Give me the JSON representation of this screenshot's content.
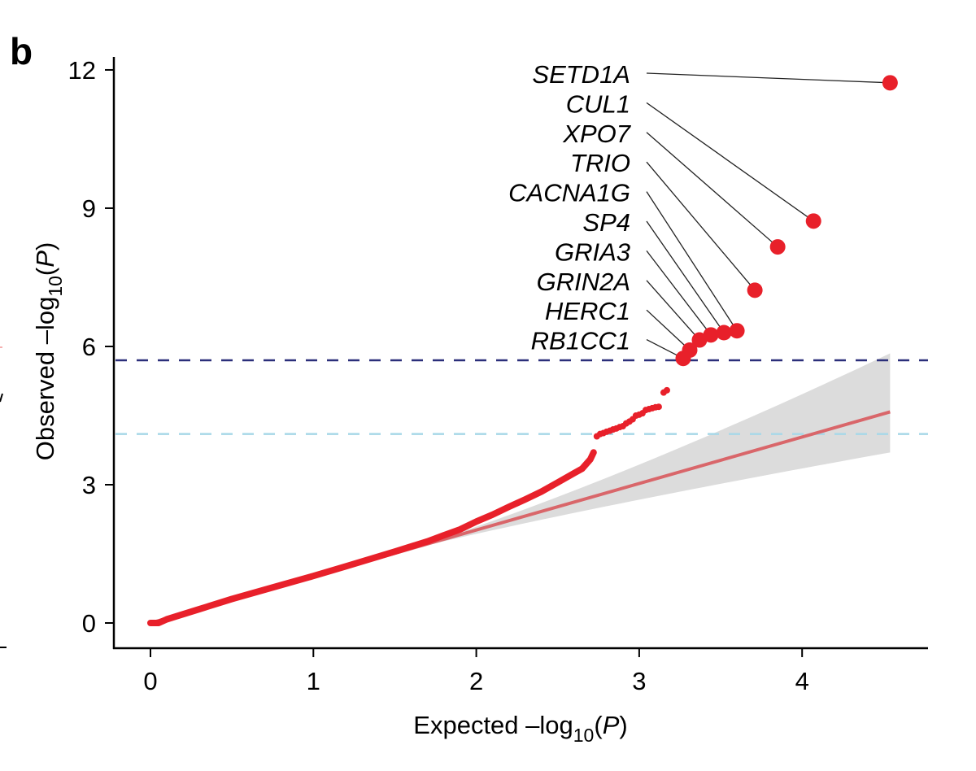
{
  "panel_label": "b",
  "colors": {
    "points": "#e8202a",
    "significance_line": "#2b2f7a",
    "suggestive_line": "#a8d8e8",
    "fit_line": "#d9666a",
    "confidence_band": "#dcdcdc",
    "leader_line": "#222222",
    "axis": "#000000"
  },
  "chart_data": {
    "type": "scatter",
    "title": "",
    "xlabel": "Expected –log10(P)",
    "ylabel": "Observed –log10(P)",
    "xlabel_parts": {
      "prefix": "Expected –log",
      "sub": "10",
      "open": "(",
      "italic": "P",
      "close": ")"
    },
    "ylabel_parts": {
      "prefix": "Observed –log",
      "sub": "10",
      "open": "(",
      "italic": "P",
      "close": ")"
    },
    "xlim": [
      -0.22,
      4.78
    ],
    "ylim": [
      -0.55,
      12.3
    ],
    "x_ticks": [
      0,
      1,
      2,
      3,
      4
    ],
    "x_tick_labels": [
      "0",
      "1",
      "2",
      "3",
      "4"
    ],
    "y_ticks": [
      0,
      3,
      6,
      9,
      12
    ],
    "y_tick_labels": [
      "0",
      "3",
      "6",
      "9",
      "12"
    ],
    "grid": false,
    "legend": "none",
    "reference_lines": [
      {
        "name": "exome-wide-significance",
        "y": 5.7,
        "style": "dashed"
      },
      {
        "name": "suggestive-threshold",
        "y": 4.1,
        "style": "dashed"
      }
    ],
    "expected_fit": {
      "x": [
        0,
        4.54
      ],
      "y": [
        0,
        4.58
      ],
      "band_upper_at_max": 5.85,
      "band_lower_at_max": 3.7,
      "band_start_x": 1.5
    },
    "bulk_curve": {
      "x": [
        0.0,
        0.05,
        0.1,
        0.3,
        0.5,
        0.8,
        1.0,
        1.2,
        1.5,
        1.7,
        1.8,
        1.9,
        2.0,
        2.1,
        2.2,
        2.3,
        2.4,
        2.5,
        2.6,
        2.65,
        2.7,
        2.72
      ],
      "y": [
        0.0,
        0.0,
        0.08,
        0.3,
        0.52,
        0.82,
        1.02,
        1.23,
        1.55,
        1.77,
        1.9,
        2.03,
        2.2,
        2.35,
        2.52,
        2.68,
        2.85,
        3.05,
        3.25,
        3.35,
        3.55,
        3.7
      ]
    },
    "sparse_points": {
      "x": [
        2.74,
        2.76,
        2.78,
        2.8,
        2.82,
        2.84,
        2.86,
        2.88,
        2.9,
        2.92,
        2.94,
        2.96,
        2.98,
        3.0,
        3.02,
        3.04,
        3.06,
        3.08,
        3.1,
        3.12,
        3.15,
        3.17
      ],
      "y": [
        4.05,
        4.1,
        4.12,
        4.15,
        4.17,
        4.2,
        4.22,
        4.25,
        4.27,
        4.33,
        4.37,
        4.42,
        4.5,
        4.52,
        4.55,
        4.62,
        4.64,
        4.66,
        4.68,
        4.69,
        5.0,
        5.05
      ]
    },
    "top_hits": [
      {
        "gene": "SETD1A",
        "x": 4.54,
        "y": 11.72
      },
      {
        "gene": "CUL1",
        "x": 4.07,
        "y": 8.72
      },
      {
        "gene": "XPO7",
        "x": 3.85,
        "y": 8.16
      },
      {
        "gene": "TRIO",
        "x": 3.71,
        "y": 7.22
      },
      {
        "gene": "CACNA1G",
        "x": 3.6,
        "y": 6.34
      },
      {
        "gene": "SP4",
        "x": 3.52,
        "y": 6.3
      },
      {
        "gene": "GRIA3",
        "x": 3.44,
        "y": 6.25
      },
      {
        "gene": "GRIN2A",
        "x": 3.37,
        "y": 6.14
      },
      {
        "gene": "HERC1",
        "x": 3.31,
        "y": 5.92
      },
      {
        "gene": "RB1CC1",
        "x": 3.27,
        "y": 5.74
      }
    ]
  }
}
